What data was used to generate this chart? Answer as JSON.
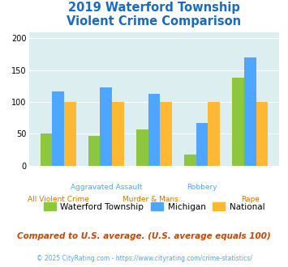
{
  "title": "2019 Waterford Township\nViolent Crime Comparison",
  "categories": [
    "All Violent Crime",
    "Aggravated Assault",
    "Murder & Mans...",
    "Robbery",
    "Rape"
  ],
  "cat_line1": [
    "All Violent Crime",
    "Aggravated Assault",
    "Murder & Mans...",
    "Robbery",
    "Rape"
  ],
  "cat_line2": [
    "",
    "",
    "",
    "",
    ""
  ],
  "series": {
    "Waterford Township": [
      50,
      46,
      57,
      17,
      138
    ],
    "Michigan": [
      116,
      123,
      113,
      67,
      170
    ],
    "National": [
      100,
      100,
      100,
      100,
      100
    ]
  },
  "colors": {
    "Waterford Township": "#8dc63f",
    "Michigan": "#4da6ff",
    "National": "#ffb833"
  },
  "ylim": [
    0,
    210
  ],
  "yticks": [
    0,
    50,
    100,
    150,
    200
  ],
  "plot_bg": "#ddeef0",
  "title_color": "#1a6bbf",
  "x_label_line1": [
    "All Violent Crime",
    "Aggravated Assault",
    "Murder & Mans...",
    "Robbery",
    "Rape"
  ],
  "x_label_line2": [
    "",
    "",
    "",
    "",
    ""
  ],
  "x_color_line1": [
    "#cc7700",
    "#4da6ff",
    "#cc7700",
    "#4da6ff",
    "#cc7700"
  ],
  "x_color_line2": [
    "#cc7700",
    "#4da6ff",
    "#cc7700",
    "#4da6ff",
    "#cc7700"
  ],
  "footer_text": "Compared to U.S. average. (U.S. average equals 100)",
  "copyright_text": "© 2025 CityRating.com - https://www.cityrating.com/crime-statistics/",
  "footer_color": "#cc4400",
  "copyright_color": "#4da6ff",
  "bar_width": 0.25,
  "figsize": [
    3.55,
    3.3
  ],
  "dpi": 100
}
